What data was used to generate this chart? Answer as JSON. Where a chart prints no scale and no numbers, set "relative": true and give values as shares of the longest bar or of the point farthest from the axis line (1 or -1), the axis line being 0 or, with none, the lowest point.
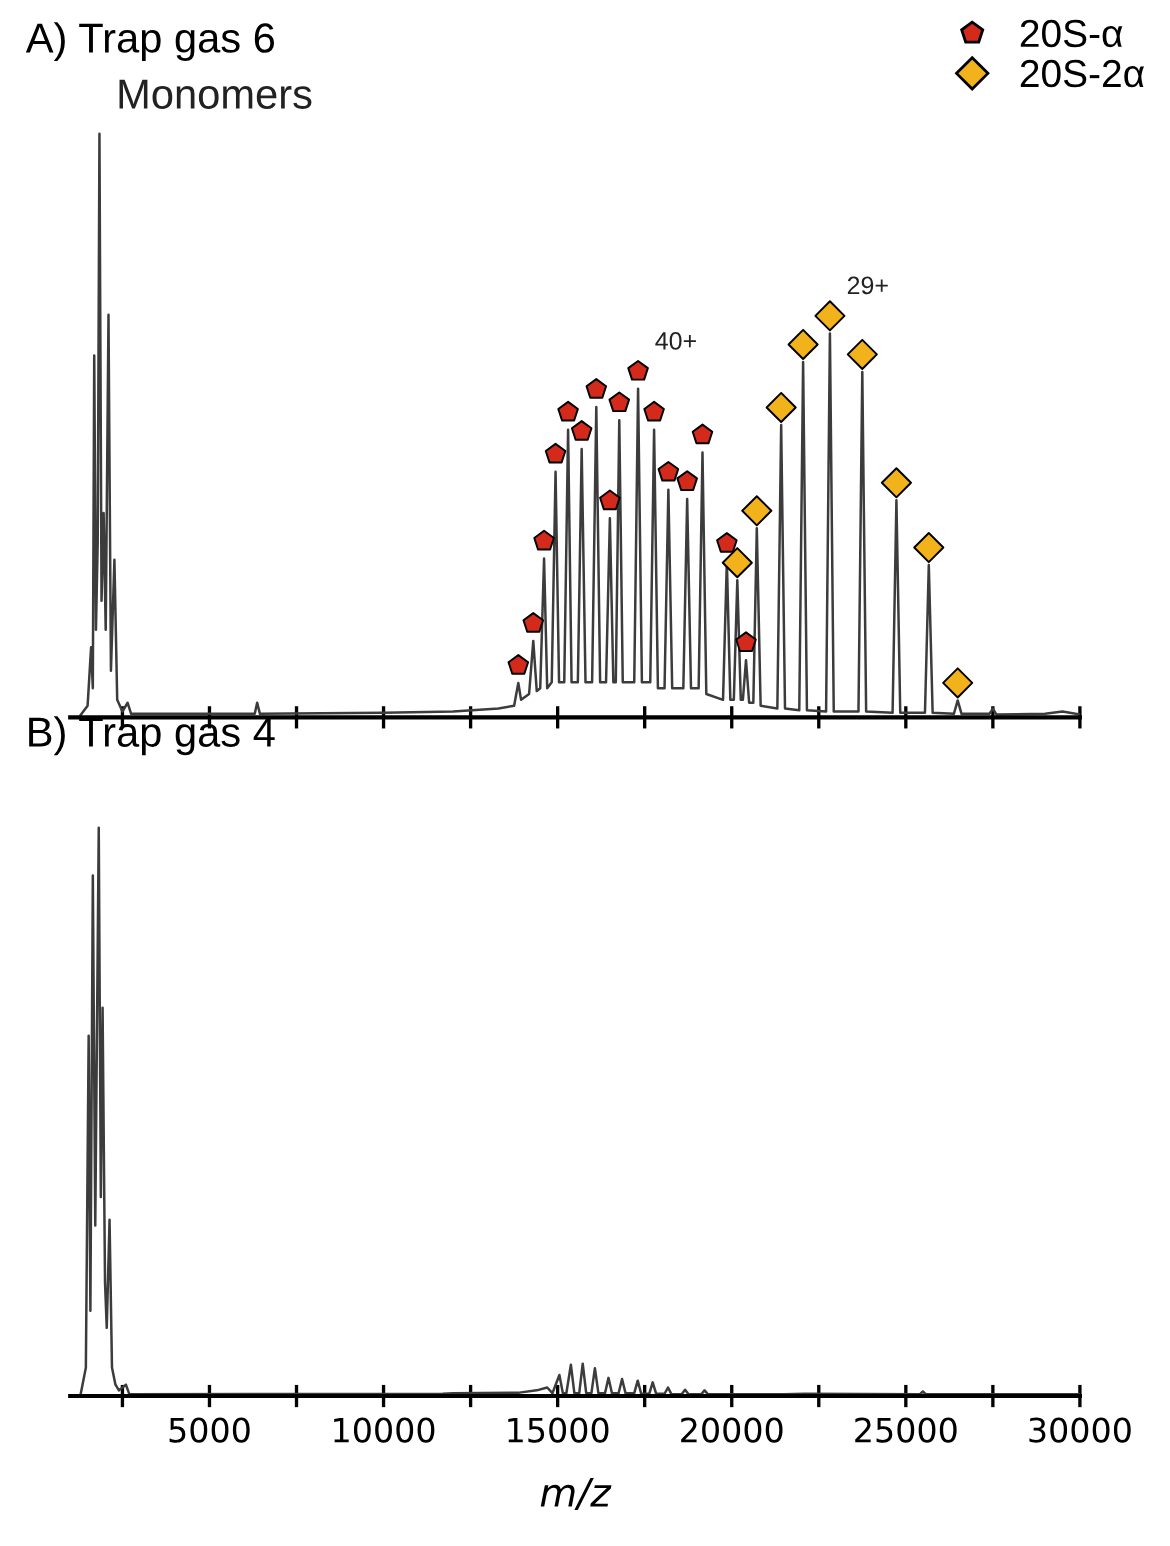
{
  "chart_data": [
    {
      "type": "line",
      "title": "A) Trap gas 6",
      "relative": true,
      "tick_labels": false,
      "legend": "top right",
      "grid": false,
      "xlim": [
        1000,
        30000
      ],
      "xticks": [
        {
          "value": 2500,
          "label": null
        },
        {
          "value": 5000,
          "label": null
        },
        {
          "value": 7500,
          "label": null
        },
        {
          "value": 10000,
          "label": null
        },
        {
          "value": 12500,
          "label": null
        },
        {
          "value": 15000,
          "label": null
        },
        {
          "value": 17500,
          "label": null
        },
        {
          "value": 20000,
          "label": null
        },
        {
          "value": 22500,
          "label": null
        },
        {
          "value": 25000,
          "label": null
        },
        {
          "value": 27500,
          "label": null
        },
        {
          "value": 30000,
          "label": null
        }
      ],
      "annotations": [
        {
          "text": "Monomers",
          "x": 1840,
          "y": 1.0
        },
        {
          "text": "40+",
          "x": 17310,
          "y": 0.593
        },
        {
          "text": "29+",
          "x": 22820,
          "y": 0.688
        }
      ],
      "series": [
        {
          "color": "#3c3c3c",
          "marker": "none",
          "line_style": "solid",
          "x": [
            1300,
            1500,
            1600,
            1650,
            1690,
            1740,
            1790,
            1840,
            1900,
            1960,
            2020,
            2100,
            2170,
            2270,
            2350,
            2500,
            2650,
            2750,
            6300,
            6370,
            6450,
            10000,
            12000,
            13300,
            13750,
            13870,
            13950,
            14180,
            14300,
            14400,
            14500,
            14610,
            14700,
            14830,
            14940,
            15040,
            15190,
            15300,
            15400,
            15580,
            15690,
            15800,
            15990,
            16110,
            16220,
            16390,
            16500,
            16600,
            16670,
            16770,
            16870,
            17200,
            17310,
            17420,
            17660,
            17770,
            17880,
            18070,
            18180,
            18290,
            18610,
            18720,
            18830,
            19050,
            19160,
            19270,
            19750,
            19860,
            19960,
            20060,
            20160,
            20260,
            20320,
            20410,
            20500,
            20620,
            20720,
            20830,
            21310,
            21420,
            21530,
            21940,
            22050,
            22160,
            22710,
            22820,
            22930,
            23640,
            23750,
            23860,
            24620,
            24730,
            24840,
            25550,
            25660,
            25770,
            26380,
            26490,
            26600,
            27400,
            27500,
            27600,
            29000,
            29500,
            30000
          ],
          "values": [
            0.004,
            0.02,
            0.12,
            0.05,
            0.62,
            0.15,
            0.3,
            1.0,
            0.2,
            0.35,
            0.15,
            0.69,
            0.08,
            0.27,
            0.03,
            0.01,
            0.025,
            0.006,
            0.006,
            0.025,
            0.006,
            0.008,
            0.01,
            0.015,
            0.02,
            0.059,
            0.03,
            0.04,
            0.131,
            0.045,
            0.05,
            0.272,
            0.05,
            0.06,
            0.421,
            0.06,
            0.06,
            0.493,
            0.06,
            0.06,
            0.46,
            0.06,
            0.06,
            0.532,
            0.06,
            0.06,
            0.341,
            0.06,
            0.06,
            0.509,
            0.06,
            0.06,
            0.563,
            0.06,
            0.06,
            0.493,
            0.05,
            0.05,
            0.39,
            0.05,
            0.05,
            0.374,
            0.05,
            0.05,
            0.454,
            0.04,
            0.03,
            0.268,
            0.03,
            0.03,
            0.235,
            0.03,
            0.03,
            0.098,
            0.025,
            0.025,
            0.324,
            0.02,
            0.015,
            0.501,
            0.015,
            0.012,
            0.609,
            0.012,
            0.01,
            0.658,
            0.01,
            0.01,
            0.592,
            0.01,
            0.008,
            0.372,
            0.008,
            0.008,
            0.261,
            0.008,
            0.006,
            0.029,
            0.006,
            0.006,
            0.015,
            0.005,
            0.006,
            0.01,
            0.005
          ]
        },
        {
          "type": "scatter",
          "name": "20S-α",
          "color": "#d42a1c",
          "x": [
            13870,
            14300,
            14610,
            14940,
            15300,
            15690,
            16110,
            16500,
            16770,
            17310,
            17770,
            18180,
            18720,
            19160,
            19860,
            20410
          ],
          "values": [
            0.089,
            0.161,
            0.302,
            0.451,
            0.523,
            0.49,
            0.562,
            0.371,
            0.539,
            0.593,
            0.523,
            0.42,
            0.404,
            0.484,
            0.298,
            0.128
          ]
        },
        {
          "type": "scatter",
          "name": "20S-2α",
          "color": "#f2b21c",
          "marker": "diamond",
          "x": [
            20160,
            20720,
            21420,
            22050,
            22820,
            23750,
            24730,
            25660,
            26490
          ],
          "values": [
            0.265,
            0.354,
            0.531,
            0.639,
            0.688,
            0.622,
            0.402,
            0.291,
            0.059
          ]
        }
      ]
    },
    {
      "type": "line",
      "title": "B) Trap gas 4",
      "xlabel": "m/z",
      "relative": true,
      "tick_labels": "x",
      "grid": false,
      "xlim": [
        1000,
        30000
      ],
      "xticks": [
        {
          "value": 2500,
          "label": null
        },
        5000,
        {
          "value": 7500,
          "label": null
        },
        10000,
        {
          "value": 12500,
          "label": null
        },
        15000,
        {
          "value": 17500,
          "label": null
        },
        20000,
        {
          "value": 22500,
          "label": null
        },
        25000,
        {
          "value": 27500,
          "label": null
        },
        30000
      ],
      "series": [
        {
          "color": "#3c3c3c",
          "marker": "none",
          "line_style": "solid",
          "x": [
            1300,
            1450,
            1530,
            1580,
            1650,
            1720,
            1820,
            1880,
            1930,
            2000,
            2050,
            2130,
            2200,
            2300,
            2400,
            2600,
            2700,
            11700,
            12000,
            13900,
            14400,
            14700,
            14850,
            15050,
            15150,
            15250,
            15380,
            15480,
            15620,
            15720,
            15820,
            15970,
            16070,
            16170,
            16360,
            16460,
            16560,
            16750,
            16850,
            16950,
            17200,
            17300,
            17400,
            17630,
            17730,
            17830,
            18070,
            18170,
            18270,
            18560,
            18660,
            18760,
            19120,
            19220,
            19320,
            21500,
            22100,
            25400,
            25490,
            25580,
            30000
          ],
          "values": [
            0.003,
            0.05,
            0.634,
            0.15,
            0.916,
            0.3,
            1.0,
            0.35,
            0.683,
            0.2,
            0.12,
            0.31,
            0.05,
            0.02,
            0.01,
            0.02,
            0.003,
            0.004,
            0.005,
            0.006,
            0.01,
            0.015,
            0.005,
            0.037,
            0.005,
            0.005,
            0.055,
            0.005,
            0.005,
            0.057,
            0.005,
            0.005,
            0.049,
            0.005,
            0.005,
            0.032,
            0.005,
            0.005,
            0.03,
            0.005,
            0.005,
            0.027,
            0.004,
            0.004,
            0.024,
            0.004,
            0.004,
            0.015,
            0.003,
            0.003,
            0.011,
            0.003,
            0.003,
            0.01,
            0.003,
            0.003,
            0.004,
            0.003,
            0.008,
            0.003,
            0.003
          ]
        }
      ]
    }
  ]
}
